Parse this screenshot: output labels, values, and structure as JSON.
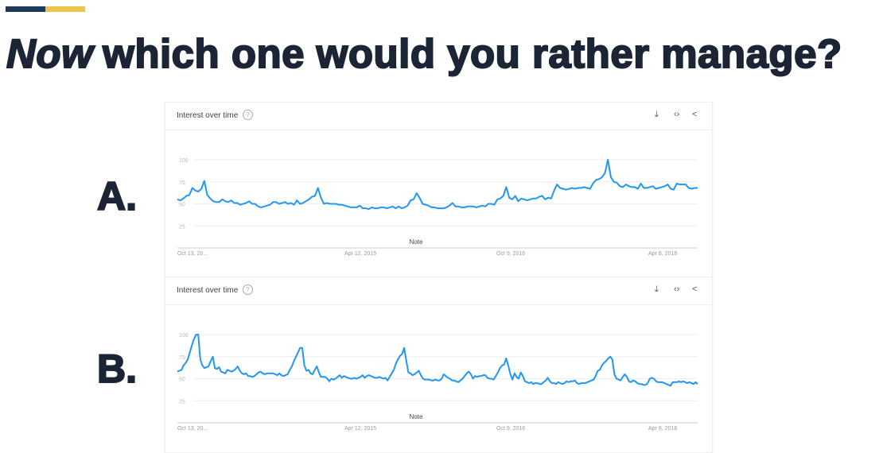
{
  "header": {
    "title_italic": "Now",
    "title_rest": "which one would you rather manage?",
    "accent_colors": [
      "#1f3a5c",
      "#efc44e"
    ]
  },
  "line_color": "#2196f3",
  "chart_data": [
    {
      "type": "line",
      "label": "A.",
      "title": "Interest over time",
      "note": "Note",
      "ylim": [
        0,
        100
      ],
      "yticks": [
        25,
        50,
        75,
        100
      ],
      "grid": true,
      "xtick_labels": [
        "Oct 13, 20...",
        "Apr 12, 2015",
        "Oct 9, 2016",
        "Apr 8, 2018"
      ],
      "values": [
        55,
        54,
        56,
        59,
        60,
        68,
        65,
        64,
        67,
        76,
        60,
        56,
        53,
        52,
        52,
        55,
        53,
        52,
        54,
        51,
        51,
        49,
        50,
        51,
        53,
        50,
        50,
        47,
        46,
        47,
        48,
        49,
        52,
        52,
        50,
        51,
        52,
        50,
        51,
        49,
        54,
        50,
        51,
        53,
        55,
        58,
        59,
        68,
        57,
        50,
        51,
        50,
        50,
        50,
        49,
        49,
        48,
        47,
        46,
        46,
        46,
        48,
        45,
        45,
        44,
        46,
        45,
        45,
        46,
        46,
        45,
        46,
        47,
        45,
        47,
        45,
        46,
        48,
        54,
        55,
        62,
        57,
        50,
        49,
        48,
        46,
        46,
        45,
        45,
        45,
        46,
        48,
        51,
        47,
        47,
        46,
        46,
        47,
        47,
        47,
        46,
        47,
        48,
        47,
        50,
        50,
        49,
        55,
        56,
        59,
        69,
        57,
        55,
        59,
        53,
        56,
        55,
        54,
        55,
        56,
        56,
        58,
        59,
        55,
        57,
        56,
        65,
        72,
        68,
        67,
        66,
        67,
        68,
        67,
        68,
        68,
        69,
        68,
        67,
        73,
        77,
        78,
        80,
        85,
        100,
        80,
        75,
        74,
        70,
        69,
        72,
        70,
        69,
        69,
        67,
        73,
        68,
        68,
        69,
        70,
        67,
        68,
        69,
        70,
        72,
        67,
        66,
        73,
        72,
        72,
        72,
        68,
        67,
        68,
        68
      ]
    },
    {
      "type": "line",
      "label": "B.",
      "title": "Interest over time",
      "note": "Note",
      "ylim": [
        0,
        100
      ],
      "yticks": [
        25,
        50,
        75,
        100
      ],
      "grid": true,
      "xtick_labels": [
        "Oct 13, 20...",
        "Apr 12, 2015",
        "Oct 9, 2016",
        "Apr 8, 2018"
      ],
      "values": [
        58,
        59,
        60,
        65,
        68,
        72,
        80,
        88,
        95,
        100,
        100,
        72,
        65,
        62,
        63,
        64,
        70,
        75,
        62,
        61,
        63,
        58,
        57,
        56,
        60,
        59,
        58,
        59,
        61,
        64,
        59,
        56,
        55,
        56,
        53,
        53,
        52,
        53,
        55,
        57,
        58,
        56,
        55,
        56,
        56,
        56,
        56,
        55,
        54,
        56,
        54,
        53,
        54,
        55,
        60,
        64,
        70,
        75,
        80,
        85,
        85,
        65,
        59,
        60,
        56,
        55,
        60,
        64,
        57,
        52,
        52,
        52,
        50,
        47,
        50,
        49,
        50,
        52,
        54,
        51,
        53,
        52,
        51,
        50,
        50,
        51,
        50,
        51,
        52,
        54,
        51,
        53,
        54,
        53,
        52,
        51,
        51,
        52,
        51,
        50,
        51,
        48,
        52,
        56,
        60,
        67,
        72,
        76,
        78,
        85,
        70,
        57,
        56,
        54,
        55,
        57,
        59,
        54,
        50,
        49,
        49,
        49,
        48,
        48,
        49,
        48,
        48,
        50,
        55,
        53,
        51,
        50,
        48,
        48,
        47,
        46,
        48,
        50,
        53,
        56,
        58,
        55,
        50,
        53,
        52,
        53,
        53,
        54,
        54,
        51,
        50,
        50,
        49,
        53,
        57,
        62,
        65,
        66,
        73,
        65,
        55,
        49,
        56,
        52,
        50,
        57,
        53,
        47,
        46,
        45,
        46,
        44,
        45,
        45,
        44,
        44,
        46,
        48,
        51,
        47,
        45,
        45,
        44,
        46,
        45,
        44,
        45,
        47,
        46,
        47,
        47,
        48,
        45,
        44,
        45,
        45,
        45,
        46,
        47,
        48,
        49,
        53,
        59,
        60,
        65,
        68,
        70,
        73,
        75,
        72,
        55,
        50,
        49,
        48,
        52,
        55,
        52,
        47,
        46,
        48,
        47,
        45,
        44,
        44,
        43,
        43,
        45,
        50,
        51,
        50,
        47,
        46,
        46,
        46,
        45,
        44,
        43,
        42,
        46,
        46,
        46,
        47,
        46,
        47,
        46,
        45,
        46,
        45,
        44,
        46,
        44
      ]
    }
  ],
  "icons": [
    "download-icon",
    "embed-icon",
    "share-icon",
    "help-icon"
  ]
}
